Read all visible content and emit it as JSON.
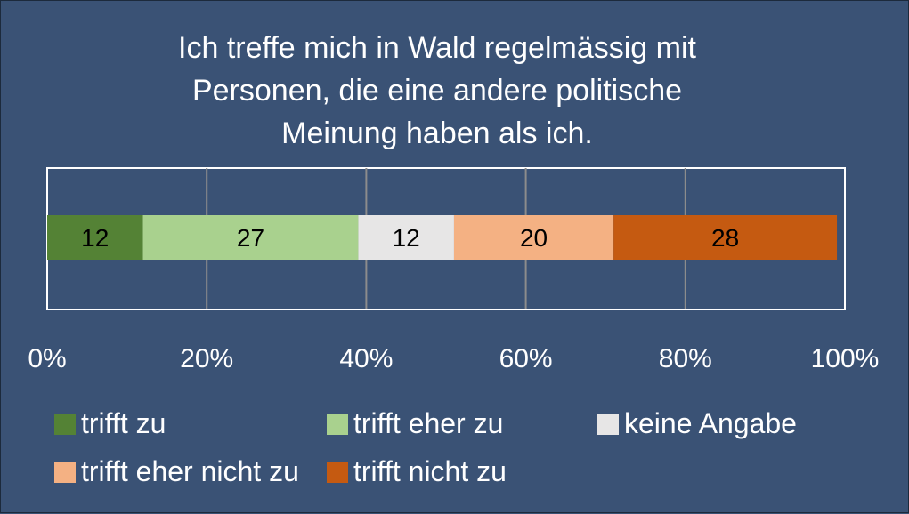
{
  "chart_data": {
    "type": "bar",
    "orientation": "horizontal",
    "stacked": true,
    "title": [
      "Ich treffe mich in Wald regelmässig mit",
      "Personen, die eine andere politische",
      "Meinung haben als ich."
    ],
    "xlabel": "",
    "ylabel": "",
    "xlim": [
      0,
      100
    ],
    "x_ticks": [
      "0%",
      "20%",
      "40%",
      "60%",
      "80%",
      "100%"
    ],
    "grid": true,
    "legend_position": "bottom",
    "series": [
      {
        "name": "trifft zu",
        "value": 12,
        "label": "12",
        "color": "#548235"
      },
      {
        "name": "trifft eher zu",
        "value": 27,
        "label": "27",
        "color": "#a9d18e"
      },
      {
        "name": "keine Angabe",
        "value": 12,
        "label": "12",
        "color": "#e7e6e6"
      },
      {
        "name": "trifft eher nicht zu",
        "value": 20,
        "label": "20",
        "color": "#f4b183"
      },
      {
        "name": "trifft nicht zu",
        "value": 28,
        "label": "28",
        "color": "#c55a11"
      }
    ]
  }
}
